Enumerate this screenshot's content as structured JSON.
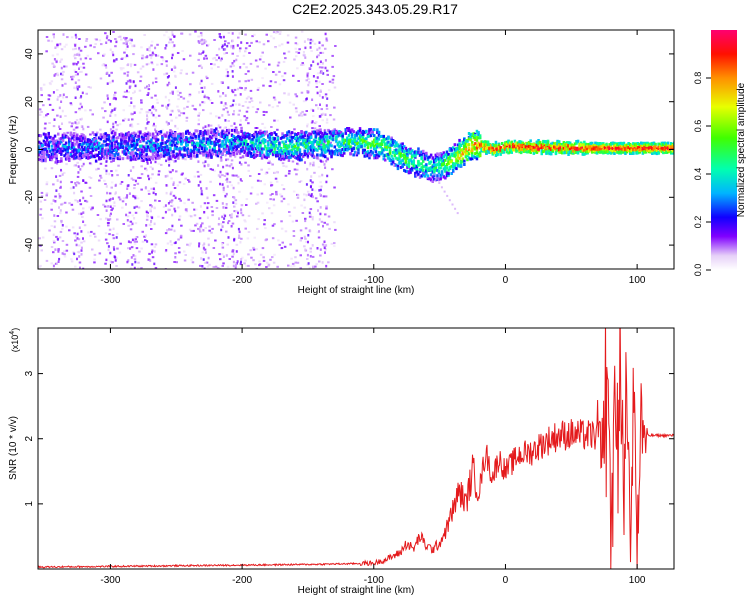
{
  "figure_title": "C2E2.2025.343.05.29.R17",
  "colors": {
    "snr_line": "#e41a1c",
    "axis": "#000000",
    "colormap": [
      "#e8d8f8",
      "#c79ef0",
      "#8a3cf0",
      "#3a00e0",
      "#0000ff",
      "#00c8ff",
      "#00e070",
      "#80ff00",
      "#ffff00",
      "#ff8000",
      "#ff0000",
      "#ff0060"
    ]
  },
  "chart_data": [
    {
      "type": "heatmap",
      "title": "C2E2.2025.343.05.29.R17",
      "xlabel": "Height of straight line (km)",
      "ylabel": "Frequency (Hz)",
      "xlim": [
        -355,
        128
      ],
      "ylim": [
        -50,
        50
      ],
      "xticks": [
        -300,
        -200,
        -100,
        0,
        100
      ],
      "xtick_labels": [
        "-300",
        "-200",
        "-100",
        "0",
        "100"
      ],
      "yticks": [
        -40,
        -20,
        0,
        20,
        40
      ],
      "ytick_labels": [
        "-40",
        "-20",
        "0",
        "20",
        "40"
      ],
      "ridge": {
        "x": [
          -355,
          -300,
          -250,
          -200,
          -170,
          -130,
          -110,
          -95,
          -80,
          -65,
          -55,
          -45,
          -35,
          -25,
          -15,
          -10,
          0,
          20,
          60,
          100,
          128
        ],
        "frequency": [
          1,
          1,
          2,
          3,
          1,
          3,
          3,
          2,
          -3,
          -6,
          -8,
          -6,
          -2,
          2,
          1,
          0,
          1,
          1,
          0.5,
          0.5,
          0.5
        ],
        "amplitude": [
          0.25,
          0.27,
          0.3,
          0.33,
          0.45,
          0.45,
          0.5,
          0.55,
          0.5,
          0.45,
          0.4,
          0.55,
          0.75,
          0.85,
          0.9,
          0.93,
          0.95,
          0.97,
          0.97,
          0.97,
          0.97
        ]
      },
      "colorbar": {
        "label": "Normalized spectral amplitude",
        "range": [
          0,
          1
        ],
        "ticks": [
          0.0,
          0.2,
          0.4,
          0.6,
          0.8
        ],
        "tick_labels": [
          "0.0",
          "0.2",
          "0.4",
          "0.6",
          "0.8"
        ]
      }
    },
    {
      "type": "line",
      "xlabel": "Height of straight line (km)",
      "ylabel": "SNR (10 * v/v)",
      "y_multiplier_base": "(x10",
      "y_multiplier_exp": "4",
      "y_multiplier_close": ")",
      "xlim": [
        -355,
        128
      ],
      "ylim": [
        0,
        3.7
      ],
      "xticks": [
        -300,
        -200,
        -100,
        0,
        100
      ],
      "xtick_labels": [
        "-300",
        "-200",
        "-100",
        "0",
        "100"
      ],
      "yticks": [
        1,
        2,
        3
      ],
      "ytick_labels": [
        "1",
        "2",
        "3"
      ],
      "series": [
        {
          "name": "SNR",
          "x": [
            -355,
            -300,
            -250,
            -200,
            -150,
            -120,
            -100,
            -90,
            -80,
            -75,
            -70,
            -65,
            -60,
            -55,
            -50,
            -45,
            -40,
            -35,
            -30,
            -25,
            -20,
            -15,
            -10,
            -5,
            0,
            10,
            20,
            30,
            40,
            50,
            60,
            70,
            75,
            78,
            80,
            83,
            85,
            88,
            90,
            92,
            95,
            98,
            100,
            103,
            105,
            110,
            120,
            128
          ],
          "y": [
            0.03,
            0.04,
            0.05,
            0.06,
            0.07,
            0.08,
            0.09,
            0.15,
            0.25,
            0.4,
            0.3,
            0.5,
            0.35,
            0.3,
            0.4,
            0.6,
            0.9,
            1.2,
            1.0,
            1.5,
            1.2,
            1.8,
            1.4,
            1.7,
            1.5,
            1.75,
            1.8,
            1.95,
            2.05,
            2.07,
            2.05,
            2.05,
            2.1,
            3.4,
            0.4,
            2.6,
            1.5,
            3.2,
            1.0,
            2.8,
            0.5,
            3.0,
            0.3,
            2.4,
            2.05,
            2.05,
            2.05,
            2.05
          ]
        }
      ]
    }
  ]
}
